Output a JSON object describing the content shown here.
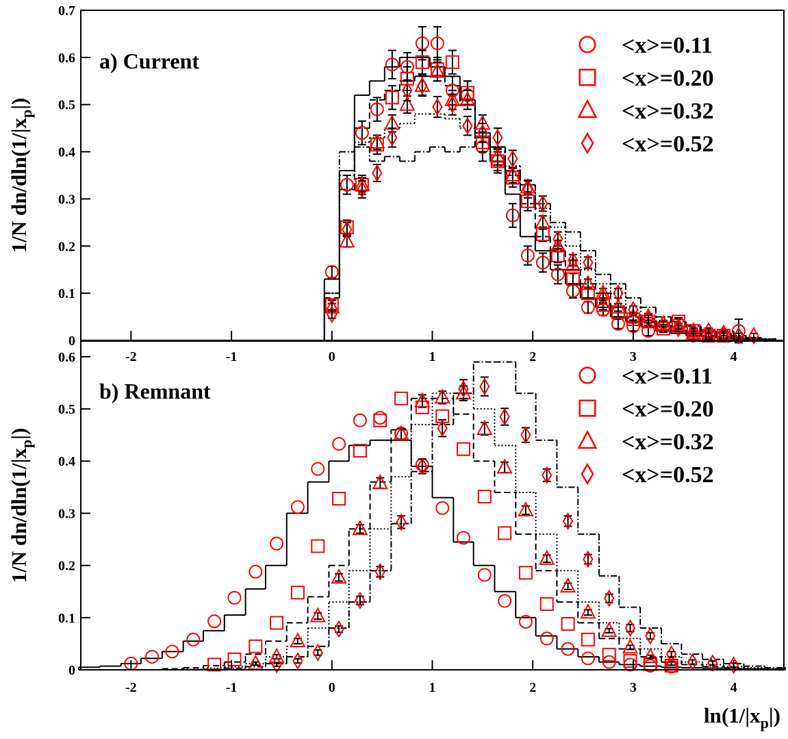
{
  "chart_data": [
    {
      "type": "scatter",
      "title": "a) Current",
      "legend": "upper right",
      "ylabel": {
        "main": "1/N dn/dln(1/|x",
        "sub": "p",
        "end": "|)"
      },
      "xlim": [
        -2.5,
        4.5
      ],
      "ylim": [
        0,
        0.7
      ],
      "xticks": [
        -2,
        -1,
        0,
        1,
        2,
        3,
        4
      ],
      "yticks": [
        0,
        0.1,
        0.2,
        0.3,
        0.4,
        0.5,
        0.6,
        0.7
      ],
      "series": [
        {
          "name": "<x>=0.11",
          "marker": "circle",
          "color": "#ff0000",
          "x": [
            0,
            0.15,
            0.3,
            0.45,
            0.6,
            0.75,
            0.9,
            1.05,
            1.2,
            1.35,
            1.5,
            1.65,
            1.8,
            1.95,
            2.1,
            2.25,
            2.4,
            2.55,
            2.7,
            2.85,
            3.0,
            3.15,
            3.3,
            3.45,
            3.6,
            3.75,
            3.9,
            4.05
          ],
          "values": [
            0.145,
            0.33,
            0.44,
            0.49,
            0.585,
            0.58,
            0.63,
            0.63,
            0.53,
            0.52,
            0.41,
            0.38,
            0.265,
            0.18,
            0.165,
            0.14,
            0.105,
            0.07,
            0.065,
            0.035,
            0.03,
            0.02,
            0.03,
            0.035,
            0.01,
            0.01,
            0.01,
            0.02
          ],
          "errors": [
            0.012,
            0.02,
            0.025,
            0.025,
            0.03,
            0.03,
            0.035,
            0.035,
            0.03,
            0.03,
            0.03,
            0.025,
            0.025,
            0.02,
            0.02,
            0.02,
            0.015,
            0.012,
            0.012,
            0.01,
            0.01,
            0.01,
            0.01,
            0.01,
            0.008,
            0.008,
            0.008,
            0.025
          ]
        },
        {
          "name": "<x>=0.20",
          "marker": "square",
          "color": "#ff0000",
          "x": [
            0,
            0.15,
            0.3,
            0.45,
            0.6,
            0.75,
            0.9,
            1.05,
            1.2,
            1.35,
            1.5,
            1.65,
            1.8,
            1.95,
            2.1,
            2.25,
            2.4,
            2.55,
            2.7,
            2.85,
            3.0,
            3.15,
            3.3,
            3.45,
            3.6,
            3.75,
            3.9
          ],
          "values": [
            0.075,
            0.24,
            0.33,
            0.415,
            0.515,
            0.555,
            0.59,
            0.575,
            0.59,
            0.525,
            0.42,
            0.38,
            0.345,
            0.295,
            0.225,
            0.18,
            0.13,
            0.1,
            0.075,
            0.06,
            0.045,
            0.04,
            0.025,
            0.04,
            0.02,
            0.01,
            0.01
          ],
          "errors": [
            0.01,
            0.015,
            0.02,
            0.02,
            0.025,
            0.025,
            0.025,
            0.025,
            0.025,
            0.025,
            0.02,
            0.02,
            0.02,
            0.02,
            0.015,
            0.015,
            0.012,
            0.01,
            0.01,
            0.01,
            0.008,
            0.008,
            0.008,
            0.008,
            0.006,
            0.006,
            0.006
          ]
        },
        {
          "name": "<x>=0.32",
          "marker": "triangle",
          "color": "#ff0000",
          "x": [
            0,
            0.15,
            0.3,
            0.45,
            0.6,
            0.75,
            0.9,
            1.05,
            1.2,
            1.35,
            1.5,
            1.65,
            1.8,
            1.95,
            2.1,
            2.25,
            2.4,
            2.55,
            2.7,
            2.85,
            3.0,
            3.15,
            3.3,
            3.45,
            3.6,
            3.75,
            3.9,
            4.05
          ],
          "values": [
            0.07,
            0.21,
            0.33,
            0.42,
            0.46,
            0.5,
            0.54,
            0.57,
            0.51,
            0.51,
            0.46,
            0.39,
            0.35,
            0.325,
            0.25,
            0.2,
            0.16,
            0.12,
            0.1,
            0.07,
            0.05,
            0.05,
            0.035,
            0.03,
            0.015,
            0.01,
            0.01,
            0.01
          ],
          "errors": [
            0.008,
            0.012,
            0.015,
            0.015,
            0.018,
            0.018,
            0.02,
            0.02,
            0.02,
            0.02,
            0.018,
            0.018,
            0.016,
            0.015,
            0.014,
            0.012,
            0.01,
            0.01,
            0.01,
            0.008,
            0.007,
            0.007,
            0.006,
            0.006,
            0.005,
            0.005,
            0.005,
            0.005
          ]
        },
        {
          "name": "<x>=0.52",
          "marker": "diamond",
          "color": "#ff0000",
          "x": [
            0,
            0.15,
            0.3,
            0.45,
            0.6,
            0.75,
            0.9,
            1.05,
            1.2,
            1.35,
            1.5,
            1.65,
            1.8,
            1.95,
            2.1,
            2.25,
            2.4,
            2.55,
            2.7,
            2.85,
            3.0,
            3.15,
            3.3,
            3.45,
            3.6,
            3.75,
            3.9,
            4.05,
            4.2
          ],
          "values": [
            0.055,
            0.235,
            0.32,
            0.355,
            0.43,
            0.53,
            0.54,
            0.495,
            0.5,
            0.455,
            0.44,
            0.43,
            0.385,
            0.32,
            0.29,
            0.215,
            0.17,
            0.165,
            0.09,
            0.1,
            0.065,
            0.045,
            0.035,
            0.025,
            0.02,
            0.02,
            0.015,
            0.01,
            0.01
          ],
          "errors": [
            0.008,
            0.015,
            0.018,
            0.018,
            0.02,
            0.022,
            0.022,
            0.022,
            0.022,
            0.02,
            0.02,
            0.02,
            0.018,
            0.018,
            0.016,
            0.015,
            0.012,
            0.012,
            0.01,
            0.01,
            0.008,
            0.008,
            0.007,
            0.006,
            0.006,
            0.006,
            0.005,
            0.005,
            0.005
          ]
        }
      ],
      "bins": [
        -0.075,
        0.075,
        0.225,
        0.375,
        0.525,
        0.675,
        0.825,
        0.975,
        1.125,
        1.275,
        1.425,
        1.575,
        1.725,
        1.875,
        2.025,
        2.175,
        2.325,
        2.475,
        2.625,
        2.775,
        2.925,
        3.075,
        3.225,
        3.375,
        3.525,
        3.675,
        3.825,
        3.975,
        4.125,
        4.275,
        4.425
      ],
      "mc_lines": [
        {
          "style": "solid",
          "color": "#000000",
          "values": [
            0.13,
            0.36,
            0.52,
            0.55,
            0.58,
            0.6,
            0.6,
            0.58,
            0.56,
            0.51,
            0.43,
            0.38,
            0.31,
            0.22,
            0.19,
            0.15,
            0.12,
            0.09,
            0.07,
            0.05,
            0.04,
            0.03,
            0.02,
            0.015,
            0.01,
            0.008,
            0.005,
            0.003,
            0.002,
            0.001
          ]
        },
        {
          "style": "dashed",
          "color": "#000000",
          "values": [
            0.09,
            0.32,
            0.45,
            0.51,
            0.53,
            0.55,
            0.56,
            0.56,
            0.54,
            0.5,
            0.44,
            0.41,
            0.35,
            0.29,
            0.22,
            0.19,
            0.15,
            0.12,
            0.1,
            0.07,
            0.05,
            0.04,
            0.03,
            0.02,
            0.015,
            0.01,
            0.008,
            0.005,
            0.003,
            0.002
          ]
        },
        {
          "style": "dotted",
          "color": "#000000",
          "values": [
            0.1,
            0.35,
            0.42,
            0.43,
            0.45,
            0.46,
            0.48,
            0.48,
            0.47,
            0.45,
            0.43,
            0.4,
            0.37,
            0.33,
            0.28,
            0.24,
            0.2,
            0.15,
            0.12,
            0.1,
            0.07,
            0.05,
            0.04,
            0.03,
            0.02,
            0.015,
            0.01,
            0.008,
            0.005,
            0.003
          ]
        },
        {
          "style": "dashdot",
          "color": "#000000",
          "values": [
            0.1,
            0.4,
            0.41,
            0.38,
            0.39,
            0.38,
            0.4,
            0.41,
            0.4,
            0.41,
            0.43,
            0.41,
            0.36,
            0.33,
            0.29,
            0.25,
            0.23,
            0.19,
            0.14,
            0.12,
            0.09,
            0.07,
            0.05,
            0.04,
            0.03,
            0.02,
            0.015,
            0.01,
            0.006,
            0.003
          ]
        }
      ]
    },
    {
      "type": "scatter",
      "title": "b) Remnant",
      "legend": "upper right",
      "ylabel": {
        "main": "1/N dn/dln(1/|x",
        "sub": "p",
        "end": "|)"
      },
      "xlabel": {
        "main": "ln(1/|x",
        "sub": "p",
        "end": "|)"
      },
      "xlim": [
        -2.5,
        4.5
      ],
      "ylim": [
        0,
        0.63
      ],
      "xticks": [
        -2,
        -1,
        0,
        1,
        2,
        3,
        4
      ],
      "yticks": [
        0,
        0.1,
        0.2,
        0.3,
        0.4,
        0.5,
        0.6
      ],
      "series": [
        {
          "name": "<x>=0.11",
          "marker": "circle",
          "color": "#ff0000",
          "x": [
            -2.0,
            -1.79,
            -1.59,
            -1.38,
            -1.17,
            -0.97,
            -0.76,
            -0.55,
            -0.34,
            -0.14,
            0.07,
            0.28,
            0.48,
            0.69,
            0.9,
            1.1,
            1.31,
            1.52,
            1.72,
            1.93,
            2.14,
            2.35,
            2.55,
            2.76,
            2.97,
            3.17,
            3.38
          ],
          "values": [
            0.012,
            0.025,
            0.035,
            0.058,
            0.093,
            0.138,
            0.188,
            0.242,
            0.312,
            0.385,
            0.433,
            0.478,
            0.483,
            0.453,
            0.393,
            0.31,
            0.253,
            0.182,
            0.132,
            0.092,
            0.06,
            0.04,
            0.022,
            0.015,
            0.01,
            0.008,
            0.006
          ]
        },
        {
          "name": "<x>=0.20",
          "marker": "square",
          "color": "#ff0000",
          "x": [
            -1.17,
            -0.97,
            -0.76,
            -0.55,
            -0.34,
            -0.14,
            0.07,
            0.28,
            0.48,
            0.69,
            0.9,
            1.1,
            1.31,
            1.52,
            1.72,
            1.93,
            2.14,
            2.35,
            2.55,
            2.76,
            2.97,
            3.17,
            3.38
          ],
          "values": [
            0.01,
            0.02,
            0.045,
            0.09,
            0.148,
            0.237,
            0.328,
            0.42,
            0.478,
            0.52,
            0.503,
            0.486,
            0.423,
            0.332,
            0.262,
            0.186,
            0.126,
            0.088,
            0.058,
            0.029,
            0.017,
            0.011,
            0.008
          ]
        },
        {
          "name": "<x>=0.32",
          "marker": "triangle",
          "color": "#ff0000",
          "x": [
            -0.76,
            -0.55,
            -0.34,
            -0.14,
            0.07,
            0.28,
            0.48,
            0.69,
            0.9,
            1.1,
            1.31,
            1.52,
            1.72,
            1.93,
            2.14,
            2.35,
            2.55,
            2.76,
            2.97,
            3.17,
            3.38
          ],
          "values": [
            0.012,
            0.025,
            0.055,
            0.103,
            0.177,
            0.27,
            0.358,
            0.452,
            0.515,
            0.522,
            0.53,
            0.462,
            0.388,
            0.306,
            0.213,
            0.16,
            0.11,
            0.075,
            0.043,
            0.025,
            0.012
          ],
          "errors": [
            0.003,
            0.004,
            0.005,
            0.006,
            0.007,
            0.008,
            0.01,
            0.01,
            0.012,
            0.012,
            0.014,
            0.012,
            0.01,
            0.008,
            0.007,
            0.006,
            0.005,
            0.004,
            0.004,
            0.003,
            0.003
          ]
        },
        {
          "name": "<x>=0.52",
          "marker": "diamond",
          "color": "#ff0000",
          "x": [
            -0.55,
            -0.34,
            -0.14,
            0.07,
            0.28,
            0.48,
            0.69,
            0.9,
            1.1,
            1.31,
            1.52,
            1.72,
            1.93,
            2.14,
            2.35,
            2.55,
            2.76,
            2.97,
            3.17,
            3.38,
            3.59,
            3.79,
            4.0
          ],
          "values": [
            0.01,
            0.017,
            0.033,
            0.078,
            0.133,
            0.188,
            0.283,
            0.39,
            0.463,
            0.538,
            0.543,
            0.485,
            0.45,
            0.373,
            0.285,
            0.212,
            0.137,
            0.08,
            0.065,
            0.03,
            0.015,
            0.013,
            0.009
          ],
          "errors": [
            0.003,
            0.004,
            0.005,
            0.006,
            0.008,
            0.01,
            0.012,
            0.014,
            0.016,
            0.018,
            0.018,
            0.016,
            0.014,
            0.012,
            0.01,
            0.009,
            0.008,
            0.007,
            0.006,
            0.005,
            0.004,
            0.004,
            0.004
          ]
        }
      ],
      "bins": [
        -2.52,
        -2.31,
        -2.1,
        -1.9,
        -1.69,
        -1.48,
        -1.28,
        -1.07,
        -0.86,
        -0.66,
        -0.45,
        -0.24,
        -0.03,
        0.17,
        0.38,
        0.59,
        0.79,
        1.0,
        1.21,
        1.41,
        1.62,
        1.83,
        2.03,
        2.24,
        2.45,
        2.66,
        2.86,
        3.07,
        3.28,
        3.48,
        3.69,
        3.9,
        4.1,
        4.31,
        4.52
      ],
      "mc_lines": [
        {
          "style": "solid",
          "color": "#000000",
          "values": [
            0.005,
            0.007,
            0.012,
            0.022,
            0.035,
            0.055,
            0.075,
            0.105,
            0.155,
            0.2,
            0.3,
            0.36,
            0.4,
            0.43,
            0.44,
            0.44,
            0.39,
            0.33,
            0.245,
            0.2,
            0.15,
            0.1,
            0.065,
            0.04,
            0.025,
            0.015,
            0.01,
            0.007,
            0.005,
            0.004,
            0.003,
            0.002,
            0.002,
            0.001
          ]
        },
        {
          "style": "dashed",
          "color": "#000000",
          "values": [
            0,
            0,
            0,
            0,
            0.002,
            0.004,
            0.008,
            0.015,
            0.03,
            0.055,
            0.09,
            0.14,
            0.2,
            0.27,
            0.36,
            0.46,
            0.52,
            0.52,
            0.49,
            0.4,
            0.34,
            0.26,
            0.19,
            0.13,
            0.09,
            0.06,
            0.04,
            0.025,
            0.015,
            0.01,
            0.006,
            0.004,
            0.002,
            0.001
          ]
        },
        {
          "style": "dotted",
          "color": "#000000",
          "values": [
            0,
            0,
            0,
            0,
            0,
            0.001,
            0.003,
            0.006,
            0.012,
            0.025,
            0.045,
            0.08,
            0.13,
            0.19,
            0.27,
            0.37,
            0.47,
            0.53,
            0.53,
            0.5,
            0.43,
            0.34,
            0.26,
            0.19,
            0.13,
            0.09,
            0.06,
            0.04,
            0.025,
            0.015,
            0.01,
            0.006,
            0.004,
            0.002
          ]
        },
        {
          "style": "dashdot",
          "color": "#000000",
          "values": [
            0,
            0,
            0,
            0,
            0,
            0,
            0.001,
            0.003,
            0.006,
            0.012,
            0.025,
            0.045,
            0.08,
            0.13,
            0.19,
            0.28,
            0.38,
            0.47,
            0.53,
            0.59,
            0.59,
            0.53,
            0.44,
            0.35,
            0.26,
            0.18,
            0.12,
            0.08,
            0.05,
            0.03,
            0.02,
            0.012,
            0.007,
            0.004
          ]
        }
      ]
    }
  ]
}
